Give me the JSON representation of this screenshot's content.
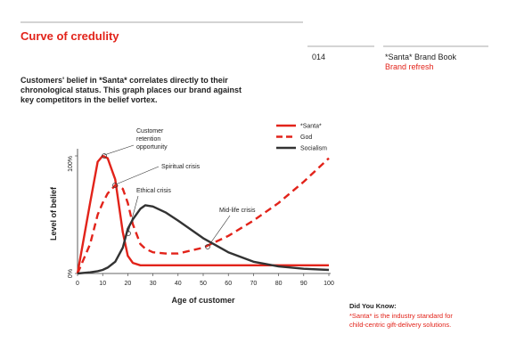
{
  "header": {
    "title": "Curve of credulity",
    "page_number": "014",
    "book": "*Santa* Brand Book",
    "section": "Brand refresh"
  },
  "intro": {
    "lines": [
      "Customers' belief in *Santa* correlates directly to their",
      "chronological status. This graph places our brand against",
      "key competitors in the belief vortex."
    ]
  },
  "chart_data": {
    "type": "line",
    "x_label": "Age of customer",
    "y_label": "Level of belief",
    "x": [
      0,
      5,
      8,
      10,
      12,
      15,
      18,
      20,
      22,
      25,
      27,
      30,
      35,
      40,
      50,
      60,
      70,
      80,
      90,
      100
    ],
    "series": [
      {
        "name": "*Santa*",
        "color": "#e2231a",
        "style": "solid",
        "values": [
          0,
          60,
          95,
          100,
          98,
          80,
          35,
          15,
          9,
          7,
          7,
          7,
          7,
          7,
          7,
          7,
          7,
          7,
          7,
          7
        ]
      },
      {
        "name": "God",
        "color": "#e2231a",
        "style": "dashed",
        "values": [
          0,
          25,
          50,
          60,
          68,
          75,
          72,
          60,
          42,
          25,
          21,
          18,
          17,
          17,
          22,
          32,
          45,
          60,
          78,
          98
        ]
      },
      {
        "name": "Socialism",
        "color": "#333333",
        "style": "solid",
        "values": [
          0,
          1,
          2,
          3,
          5,
          10,
          22,
          38,
          46,
          55,
          58,
          57,
          52,
          45,
          30,
          18,
          10,
          6,
          4,
          3
        ]
      }
    ],
    "xlim": [
      0,
      100
    ],
    "xticks": [
      0,
      10,
      20,
      30,
      40,
      50,
      60,
      70,
      80,
      90,
      100
    ],
    "ylim": [
      0,
      100
    ],
    "yticks": [
      {
        "value": 0,
        "label": "0%"
      },
      {
        "value": 100,
        "label": "100%"
      }
    ],
    "annotations": {
      "retention": [
        "Customer",
        "retention",
        "opportunity"
      ],
      "spiritual": "Spiritual crisis",
      "ethical": "Ethical crisis",
      "midlife": "Mid-life crisis"
    }
  },
  "sidebar": {
    "heading": "Did You Know:",
    "lines": [
      "*Santa* is the industry standard for",
      "child-centric gift-delivery solutions."
    ]
  }
}
